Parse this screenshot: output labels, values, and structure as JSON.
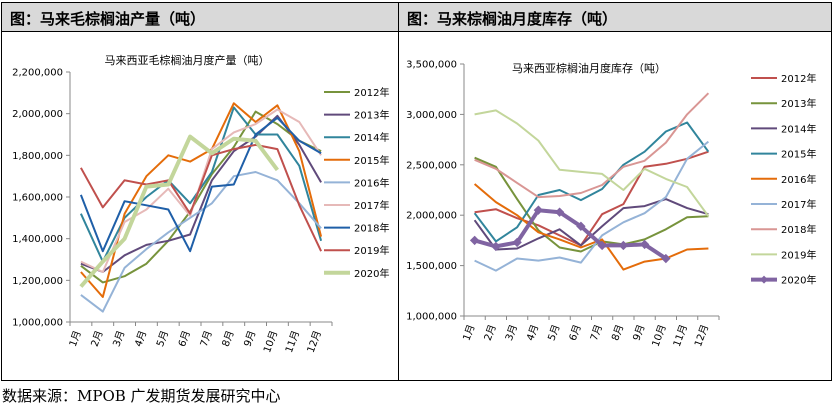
{
  "left_panel": {
    "header": "图：马来毛棕榈油产量（吨）"
  },
  "right_panel": {
    "header": "图：马来棕榈油月度库存（吨）"
  },
  "source": "数据来源：MPOB 广发期货发展研究中心",
  "chart_data": [
    {
      "type": "line",
      "title": "马来西亚毛棕榈油月度产量（吨）",
      "categories": [
        "1月",
        "2月",
        "3月",
        "4月",
        "5月",
        "6月",
        "7月",
        "8月",
        "9月",
        "10月",
        "11月",
        "12月"
      ],
      "ylim": [
        1000000,
        2200000
      ],
      "yticks": [
        "1,000,000",
        "1,200,000",
        "1,400,000",
        "1,600,000",
        "1,800,000",
        "2,000,000",
        "2,200,000"
      ],
      "series": [
        {
          "name": "2012年",
          "color": "#77933c",
          "width": 2,
          "values": [
            1270000,
            1190000,
            1220000,
            1280000,
            1390000,
            1530000,
            1710000,
            1840000,
            2010000,
            1950000,
            1870000,
            1820000
          ]
        },
        {
          "name": "2013年",
          "color": "#604a7b",
          "width": 2,
          "values": [
            1280000,
            1240000,
            1320000,
            1370000,
            1390000,
            1420000,
            1680000,
            1820000,
            1890000,
            1990000,
            1850000,
            1670000
          ]
        },
        {
          "name": "2014年",
          "color": "#31859c",
          "width": 2,
          "values": [
            1520000,
            1290000,
            1500000,
            1600000,
            1680000,
            1570000,
            1720000,
            2030000,
            1900000,
            1900000,
            1750000,
            1390000
          ]
        },
        {
          "name": "2015年",
          "color": "#e46c0a",
          "width": 2,
          "values": [
            1240000,
            1120000,
            1520000,
            1700000,
            1800000,
            1770000,
            1830000,
            2050000,
            1960000,
            2040000,
            1820000,
            1410000
          ]
        },
        {
          "name": "2016年",
          "color": "#95b3d7",
          "width": 2,
          "values": [
            1130000,
            1050000,
            1260000,
            1350000,
            1430000,
            1500000,
            1570000,
            1700000,
            1720000,
            1680000,
            1570000,
            1450000
          ]
        },
        {
          "name": "2017年",
          "color": "#e6b9b8",
          "width": 2,
          "values": [
            1290000,
            1240000,
            1480000,
            1540000,
            1640000,
            1510000,
            1830000,
            1910000,
            1950000,
            2020000,
            1960000,
            1800000
          ]
        },
        {
          "name": "2018年",
          "color": "#1f5fa8",
          "width": 2,
          "values": [
            1610000,
            1340000,
            1580000,
            1560000,
            1540000,
            1340000,
            1650000,
            1660000,
            1900000,
            1980000,
            1870000,
            1810000
          ]
        },
        {
          "name": "2019年",
          "color": "#c0504d",
          "width": 2,
          "values": [
            1740000,
            1550000,
            1680000,
            1660000,
            1680000,
            1520000,
            1800000,
            1830000,
            1850000,
            1830000,
            1560000,
            1340000
          ]
        },
        {
          "name": "2020年",
          "color": "#c3d69b",
          "width": 4,
          "values": [
            1170000,
            1290000,
            1400000,
            1650000,
            1660000,
            1890000,
            1810000,
            1880000,
            1870000,
            1730000,
            null,
            null
          ]
        }
      ]
    },
    {
      "type": "line",
      "title": "马来西亚棕榈油月度库存（吨）",
      "categories": [
        "1月",
        "2月",
        "3月",
        "4月",
        "5月",
        "6月",
        "7月",
        "8月",
        "9月",
        "10月",
        "11月",
        "12月"
      ],
      "ylim": [
        1000000,
        3500000
      ],
      "yticks": [
        "1,000,000",
        "1,500,000",
        "2,000,000",
        "2,500,000",
        "3,000,000",
        "3,500,000"
      ],
      "series": [
        {
          "name": "2012年",
          "color": "#c0504d",
          "width": 2,
          "values": [
            2030000,
            2060000,
            1970000,
            1900000,
            1800000,
            1700000,
            2010000,
            2110000,
            2480000,
            2510000,
            2560000,
            2630000
          ]
        },
        {
          "name": "2013年",
          "color": "#77933c",
          "width": 2,
          "values": [
            2570000,
            2480000,
            2160000,
            1850000,
            1680000,
            1640000,
            1740000,
            1710000,
            1760000,
            1860000,
            1980000,
            1990000
          ]
        },
        {
          "name": "2014年",
          "color": "#604a7b",
          "width": 2,
          "values": [
            1950000,
            1660000,
            1670000,
            1770000,
            1860000,
            1700000,
            1890000,
            2070000,
            2090000,
            2160000,
            2070000,
            2010000
          ]
        },
        {
          "name": "2015年",
          "color": "#31859c",
          "width": 2,
          "values": [
            2020000,
            1740000,
            1880000,
            2200000,
            2250000,
            2150000,
            2260000,
            2500000,
            2630000,
            2830000,
            2920000,
            2630000
          ]
        },
        {
          "name": "2016年",
          "color": "#e46c0a",
          "width": 2,
          "values": [
            2310000,
            2130000,
            2000000,
            1830000,
            1760000,
            1680000,
            1760000,
            1460000,
            1540000,
            1570000,
            1660000,
            1670000
          ]
        },
        {
          "name": "2017年",
          "color": "#95b3d7",
          "width": 2,
          "values": [
            1550000,
            1450000,
            1570000,
            1550000,
            1580000,
            1530000,
            1800000,
            1930000,
            2020000,
            2180000,
            2560000,
            2730000
          ]
        },
        {
          "name": "2018年",
          "color": "#d99694",
          "width": 2,
          "values": [
            2550000,
            2460000,
            2320000,
            2180000,
            2190000,
            2220000,
            2300000,
            2480000,
            2540000,
            2720000,
            3000000,
            3210000
          ]
        },
        {
          "name": "2019年",
          "color": "#c3d69b",
          "width": 2,
          "values": [
            3000000,
            3040000,
            2910000,
            2740000,
            2450000,
            2430000,
            2410000,
            2250000,
            2460000,
            2360000,
            2280000,
            1990000
          ]
        },
        {
          "name": "2020年",
          "color": "#8064a2",
          "width": 4,
          "markers": true,
          "values": [
            1750000,
            1690000,
            1730000,
            2050000,
            2030000,
            1890000,
            1700000,
            1700000,
            1710000,
            1570000,
            null,
            null
          ]
        }
      ]
    }
  ]
}
